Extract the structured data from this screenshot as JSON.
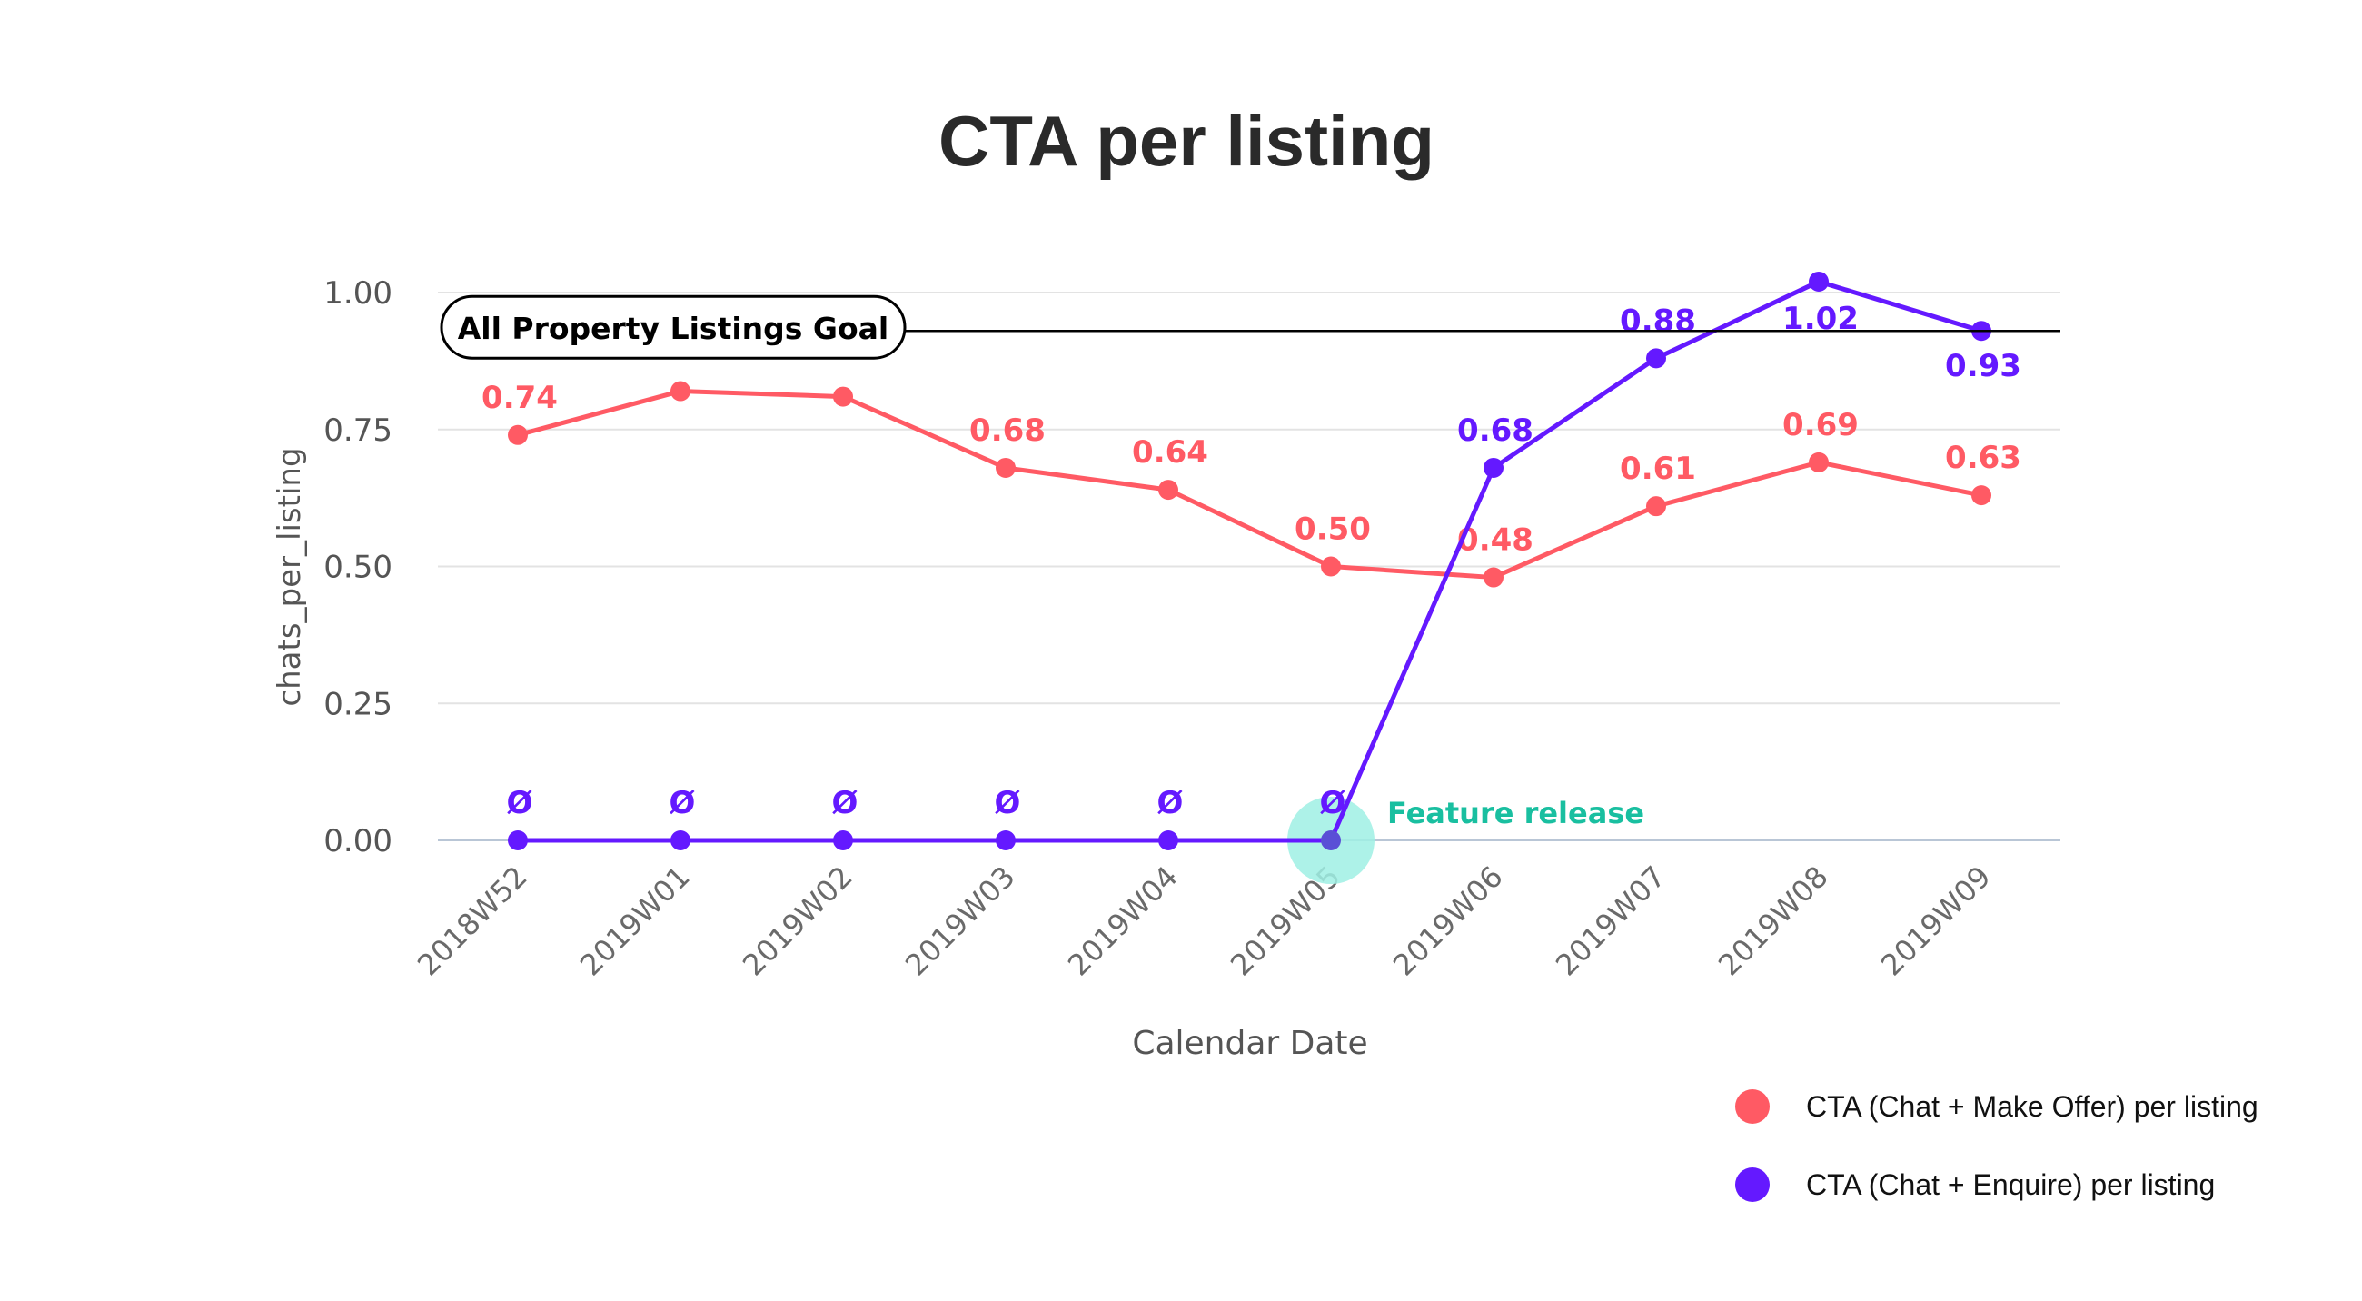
{
  "chart_data": {
    "type": "line",
    "title": "CTA per listing",
    "xlabel": "Calendar Date",
    "ylabel": "chats_per_listing",
    "categories": [
      "2018W52",
      "2019W01",
      "2019W02",
      "2019W03",
      "2019W04",
      "2019W05",
      "2019W06",
      "2019W07",
      "2019W08",
      "2019W09"
    ],
    "yticks": [
      "0.00",
      "0.25",
      "0.50",
      "0.75",
      "1.00"
    ],
    "ylim": [
      0,
      1.0
    ],
    "grid": true,
    "series": [
      {
        "name": "CTA (Chat + Make Offer) per listing",
        "color": "#ff5a64",
        "values": [
          0.74,
          0.82,
          0.81,
          0.68,
          0.64,
          0.5,
          0.48,
          0.61,
          0.69,
          0.63
        ],
        "labels": [
          "0.74",
          "",
          "",
          "0.68",
          "0.64",
          "0.50",
          "0.48",
          "0.61",
          "0.69",
          "0.63"
        ]
      },
      {
        "name": "CTA (Chat + Enquire) per listing",
        "color": "#6419ff",
        "values": [
          0,
          0,
          0,
          0,
          0,
          0,
          0.68,
          0.88,
          1.02,
          0.93
        ],
        "labels": [
          "Ø",
          "Ø",
          "Ø",
          "Ø",
          "Ø",
          "Ø",
          "0.68",
          "0.88",
          "1.02",
          "0.93"
        ]
      }
    ],
    "goal": {
      "label": "All Property Listings Goal",
      "value": 0.93,
      "color": "#000000"
    },
    "annotation": {
      "text": "Feature release",
      "category": "2019W05",
      "color": "#19bfa0",
      "highlight_color": "#9ff0e4"
    },
    "legend": {
      "position": "bottom-right"
    }
  }
}
